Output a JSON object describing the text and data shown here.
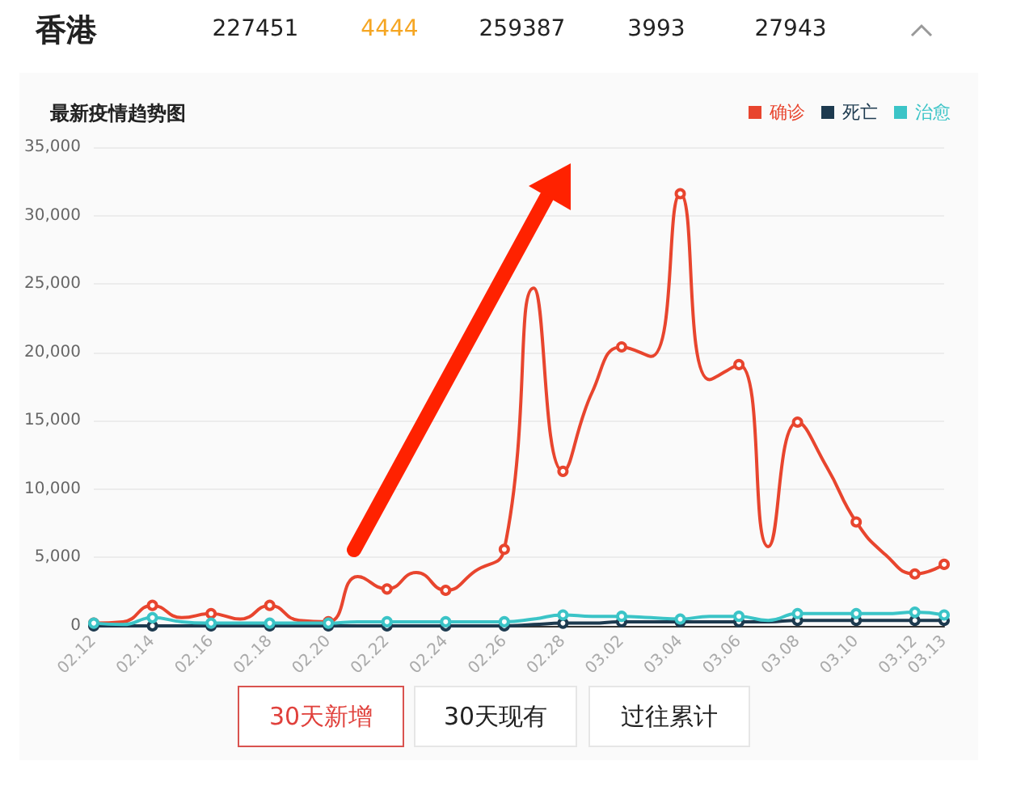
{
  "chart_data": {
    "type": "line",
    "title": "最新疫情趋势图",
    "annotations": [
      "香港",
      "227451",
      "4444",
      "259387",
      "3993",
      "27943",
      "30天新增",
      "30天现有",
      "过往累计"
    ],
    "categories": [
      "02.12",
      null,
      "02.14",
      null,
      "02.16",
      null,
      "02.18",
      null,
      "02.20",
      null,
      "02.22",
      null,
      "02.24",
      null,
      "02.26",
      null,
      "02.28",
      null,
      "03.02",
      null,
      "03.04",
      null,
      "03.06",
      null,
      "03.08",
      null,
      "03.10",
      null,
      "03.12",
      "03.13"
    ],
    "series": [
      {
        "name": "确诊",
        "color": "#e8452e",
        "values": [
          200,
          300,
          1500,
          600,
          900,
          500,
          1500,
          400,
          300,
          3600,
          2700,
          3900,
          2600,
          4000,
          5600,
          24700,
          11300,
          17100,
          20400,
          19700,
          31600,
          18000,
          19100,
          5800,
          14900,
          11600,
          7600,
          5200,
          3800,
          4500
        ]
      },
      {
        "name": "死亡",
        "color": "#1d3a4f",
        "values": [
          0,
          0,
          0,
          0,
          0,
          0,
          0,
          0,
          0,
          0,
          0,
          0,
          0,
          0,
          0,
          100,
          200,
          200,
          300,
          300,
          300,
          300,
          300,
          300,
          400,
          400,
          400,
          400,
          400,
          400
        ]
      },
      {
        "name": "治愈",
        "color": "#3bc4c7",
        "values": [
          200,
          100,
          600,
          300,
          200,
          200,
          200,
          200,
          200,
          300,
          300,
          300,
          300,
          300,
          300,
          500,
          800,
          700,
          700,
          600,
          500,
          700,
          700,
          400,
          900,
          900,
          900,
          900,
          1000,
          800
        ]
      }
    ],
    "ylim": [
      0,
      35000
    ],
    "yticks": [
      {
        "value": 0,
        "label": "0"
      },
      {
        "value": 5000,
        "label": "5,000"
      },
      {
        "value": 10000,
        "label": "10,000"
      },
      {
        "value": 15000,
        "label": "15,000"
      },
      {
        "value": 20000,
        "label": "20,000"
      },
      {
        "value": 25000,
        "label": "25,000"
      },
      {
        "value": 30000,
        "label": "30,000"
      },
      {
        "value": 35000,
        "label": "35,000"
      }
    ],
    "grid": "y",
    "legend": "top right",
    "marker": "circle",
    "line_style": "solid"
  }
}
